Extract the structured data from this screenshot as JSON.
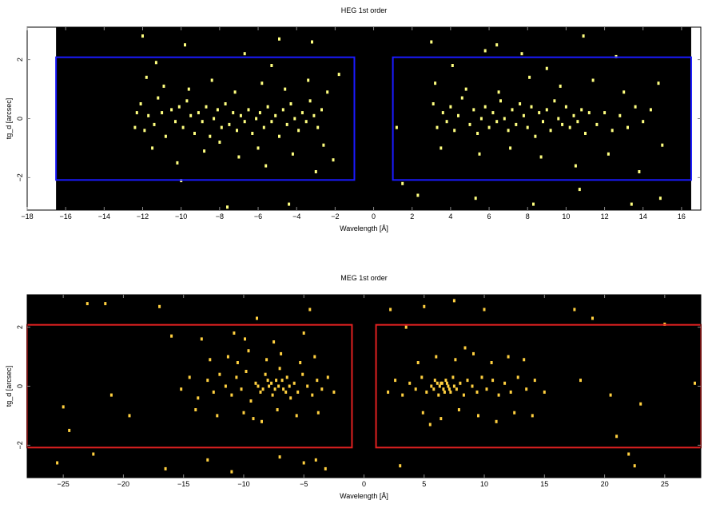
{
  "figure": {
    "background": "#ffffff",
    "plot_background": "#000000"
  },
  "chart_data": [
    {
      "type": "scatter",
      "title": "HEG 1st order",
      "xlabel": "Wavelength [Å]",
      "ylabel": "tg_d [arcsec]",
      "xlim": [
        -18,
        17
      ],
      "ylim": [
        -3.1,
        3.1
      ],
      "xticks": [
        -18,
        -16,
        -14,
        -12,
        -10,
        -8,
        -6,
        -4,
        -2,
        0,
        2,
        4,
        6,
        8,
        10,
        12,
        14,
        16
      ],
      "yticks": [
        -2,
        0,
        2
      ],
      "data_coverage_x": [
        -16.5,
        16.5
      ],
      "regions": [
        {
          "x": [
            -16.5,
            -1.0
          ],
          "y": [
            -2.08,
            2.08
          ],
          "color": "#1a1aff"
        },
        {
          "x": [
            1.0,
            16.5
          ],
          "y": [
            -2.08,
            2.08
          ],
          "color": "#1a1aff"
        }
      ],
      "point_color": "#ffff80",
      "points": [
        [
          -12.3,
          0.2
        ],
        [
          -12.1,
          0.5
        ],
        [
          -11.9,
          -0.4
        ],
        [
          -11.7,
          0.1
        ],
        [
          -11.4,
          -0.2
        ],
        [
          -11.2,
          0.7
        ],
        [
          -11.0,
          0.2
        ],
        [
          -10.8,
          -0.6
        ],
        [
          -10.5,
          0.3
        ],
        [
          -10.3,
          -0.1
        ],
        [
          -10.1,
          0.4
        ],
        [
          -9.9,
          -0.3
        ],
        [
          -9.7,
          0.6
        ],
        [
          -9.5,
          0.1
        ],
        [
          -9.3,
          -0.5
        ],
        [
          -9.1,
          0.2
        ],
        [
          -8.9,
          -0.1
        ],
        [
          -8.7,
          0.4
        ],
        [
          -8.5,
          -0.6
        ],
        [
          -8.3,
          0.0
        ],
        [
          -8.1,
          0.3
        ],
        [
          -7.9,
          -0.3
        ],
        [
          -7.7,
          0.5
        ],
        [
          -7.5,
          -0.2
        ],
        [
          -7.3,
          0.2
        ],
        [
          -7.1,
          -0.4
        ],
        [
          -6.9,
          0.1
        ],
        [
          -6.7,
          -0.1
        ],
        [
          -6.5,
          0.3
        ],
        [
          -6.3,
          -0.5
        ],
        [
          -6.1,
          0.0
        ],
        [
          -5.9,
          0.2
        ],
        [
          -5.7,
          -0.3
        ],
        [
          -5.5,
          0.4
        ],
        [
          -5.3,
          -0.1
        ],
        [
          -5.1,
          0.1
        ],
        [
          -4.9,
          -0.6
        ],
        [
          -4.7,
          0.3
        ],
        [
          -4.5,
          -0.2
        ],
        [
          -4.3,
          0.5
        ],
        [
          -4.1,
          0.0
        ],
        [
          -3.9,
          -0.4
        ],
        [
          -3.7,
          0.2
        ],
        [
          -3.5,
          -0.1
        ],
        [
          -3.3,
          0.6
        ],
        [
          -3.1,
          0.1
        ],
        [
          -2.9,
          -0.3
        ],
        [
          -2.7,
          0.3
        ],
        [
          -11.8,
          1.4
        ],
        [
          -10.9,
          1.1
        ],
        [
          -9.6,
          1.0
        ],
        [
          -8.4,
          1.3
        ],
        [
          -7.2,
          0.9
        ],
        [
          -5.8,
          1.2
        ],
        [
          -4.6,
          1.0
        ],
        [
          -3.4,
          1.3
        ],
        [
          -11.5,
          -1.0
        ],
        [
          -10.2,
          -1.5
        ],
        [
          -8.8,
          -1.1
        ],
        [
          -7.0,
          -1.3
        ],
        [
          -5.6,
          -1.6
        ],
        [
          -4.2,
          -1.2
        ],
        [
          -3.0,
          -1.8
        ],
        [
          -2.4,
          0.9
        ],
        [
          -12.0,
          2.8
        ],
        [
          -9.8,
          2.5
        ],
        [
          -6.7,
          2.2
        ],
        [
          -4.9,
          2.7
        ],
        [
          -3.2,
          2.6
        ],
        [
          -11.3,
          1.9
        ],
        [
          -5.3,
          1.8
        ],
        [
          -2.6,
          -0.9
        ],
        [
          -10.0,
          -2.1
        ],
        [
          -7.6,
          -3.0
        ],
        [
          -4.4,
          -2.9
        ],
        [
          -1.8,
          1.5
        ],
        [
          -2.1,
          -1.4
        ],
        [
          -6.0,
          -1.0
        ],
        [
          -8.0,
          -0.8
        ],
        [
          -12.4,
          -0.3
        ],
        [
          3.1,
          0.5
        ],
        [
          3.3,
          -0.3
        ],
        [
          3.6,
          0.2
        ],
        [
          3.8,
          -0.1
        ],
        [
          4.0,
          0.4
        ],
        [
          4.2,
          -0.4
        ],
        [
          4.4,
          0.1
        ],
        [
          4.6,
          0.7
        ],
        [
          5.0,
          -0.2
        ],
        [
          5.2,
          0.3
        ],
        [
          5.4,
          -0.5
        ],
        [
          5.6,
          0.0
        ],
        [
          5.8,
          0.4
        ],
        [
          6.0,
          -0.3
        ],
        [
          6.2,
          0.2
        ],
        [
          6.4,
          -0.1
        ],
        [
          6.6,
          0.6
        ],
        [
          6.8,
          0.0
        ],
        [
          7.0,
          -0.4
        ],
        [
          7.2,
          0.3
        ],
        [
          7.4,
          -0.2
        ],
        [
          7.6,
          0.5
        ],
        [
          7.8,
          0.1
        ],
        [
          8.0,
          -0.3
        ],
        [
          8.2,
          0.4
        ],
        [
          8.4,
          -0.6
        ],
        [
          8.6,
          0.2
        ],
        [
          8.8,
          -0.1
        ],
        [
          9.0,
          0.3
        ],
        [
          9.2,
          -0.4
        ],
        [
          9.4,
          0.6
        ],
        [
          9.6,
          0.0
        ],
        [
          9.8,
          -0.2
        ],
        [
          10.0,
          0.4
        ],
        [
          10.2,
          -0.3
        ],
        [
          10.4,
          0.1
        ],
        [
          10.6,
          -0.1
        ],
        [
          10.8,
          0.3
        ],
        [
          11.0,
          -0.5
        ],
        [
          11.2,
          0.2
        ],
        [
          11.6,
          -0.2
        ],
        [
          12.0,
          0.2
        ],
        [
          12.4,
          -0.4
        ],
        [
          12.8,
          0.1
        ],
        [
          13.2,
          -0.3
        ],
        [
          13.6,
          0.4
        ],
        [
          14.0,
          -0.1
        ],
        [
          14.4,
          0.3
        ],
        [
          3.2,
          1.2
        ],
        [
          4.8,
          1.0
        ],
        [
          6.5,
          0.9
        ],
        [
          8.1,
          1.4
        ],
        [
          9.7,
          1.1
        ],
        [
          11.4,
          1.3
        ],
        [
          13.0,
          0.9
        ],
        [
          14.8,
          1.2
        ],
        [
          3.5,
          -1.0
        ],
        [
          5.5,
          -1.2
        ],
        [
          7.1,
          -1.0
        ],
        [
          8.7,
          -1.3
        ],
        [
          10.5,
          -1.6
        ],
        [
          12.2,
          -1.2
        ],
        [
          13.8,
          -1.8
        ],
        [
          15.0,
          -0.9
        ],
        [
          3.0,
          2.6
        ],
        [
          5.8,
          2.3
        ],
        [
          6.4,
          2.5
        ],
        [
          7.7,
          2.2
        ],
        [
          10.9,
          2.8
        ],
        [
          12.6,
          2.1
        ],
        [
          4.1,
          1.8
        ],
        [
          9.0,
          1.7
        ],
        [
          1.5,
          -2.2
        ],
        [
          2.3,
          -2.6
        ],
        [
          5.3,
          -2.7
        ],
        [
          8.3,
          -2.9
        ],
        [
          10.7,
          -2.4
        ],
        [
          13.4,
          -2.9
        ],
        [
          14.9,
          -2.7
        ],
        [
          1.2,
          -0.3
        ]
      ]
    },
    {
      "type": "scatter",
      "title": "MEG 1st order",
      "xlabel": "Wavelength [Å]",
      "ylabel": "tg_d [arcsec]",
      "xlim": [
        -28,
        28
      ],
      "ylim": [
        -3.1,
        3.1
      ],
      "xticks": [
        -25,
        -20,
        -15,
        -10,
        -5,
        0,
        5,
        10,
        15,
        20,
        25
      ],
      "yticks": [
        -2,
        0,
        2
      ],
      "regions": [
        {
          "x": [
            -28,
            -1.0
          ],
          "y": [
            -2.08,
            2.08
          ],
          "color": "#e02020"
        },
        {
          "x": [
            1.0,
            28
          ],
          "y": [
            -2.08,
            2.08
          ],
          "color": "#e02020"
        }
      ],
      "point_color": "#ffd040",
      "points": [
        [
          -15.2,
          -0.1
        ],
        [
          -14.5,
          0.3
        ],
        [
          -13.8,
          -0.4
        ],
        [
          -13.0,
          0.2
        ],
        [
          -12.5,
          -0.2
        ],
        [
          -12.0,
          0.4
        ],
        [
          -11.5,
          0.0
        ],
        [
          -11.0,
          -0.3
        ],
        [
          -10.6,
          0.3
        ],
        [
          -10.2,
          -0.1
        ],
        [
          -9.8,
          0.5
        ],
        [
          -9.4,
          -0.5
        ],
        [
          -9.0,
          0.1
        ],
        [
          -8.6,
          -0.2
        ],
        [
          -8.2,
          0.4
        ],
        [
          -7.9,
          0.0
        ],
        [
          -7.6,
          -0.3
        ],
        [
          -7.3,
          0.2
        ],
        [
          -7.0,
          0.6
        ],
        [
          -6.7,
          -0.1
        ],
        [
          -6.4,
          0.3
        ],
        [
          -6.1,
          -0.4
        ],
        [
          -5.8,
          0.1
        ],
        [
          -5.5,
          -0.2
        ],
        [
          -5.1,
          0.4
        ],
        [
          -4.7,
          0.0
        ],
        [
          -4.3,
          -0.3
        ],
        [
          -3.9,
          0.2
        ],
        [
          -3.5,
          -0.1
        ],
        [
          -3.0,
          0.3
        ],
        [
          -2.5,
          -0.2
        ],
        [
          -8.8,
          0.0
        ],
        [
          -8.4,
          -0.1
        ],
        [
          -8.0,
          0.2
        ],
        [
          -7.7,
          0.1
        ],
        [
          -7.4,
          -0.1
        ],
        [
          -7.1,
          0.0
        ],
        [
          -6.8,
          0.2
        ],
        [
          -6.5,
          -0.2
        ],
        [
          -6.2,
          0.0
        ],
        [
          -12.8,
          0.9
        ],
        [
          -11.3,
          1.0
        ],
        [
          -9.6,
          1.2
        ],
        [
          -8.1,
          0.9
        ],
        [
          -6.9,
          1.1
        ],
        [
          -5.3,
          0.8
        ],
        [
          -4.1,
          1.0
        ],
        [
          -10.5,
          0.8
        ],
        [
          -14.0,
          -0.8
        ],
        [
          -12.2,
          -1.0
        ],
        [
          -10.0,
          -0.9
        ],
        [
          -8.5,
          -1.2
        ],
        [
          -7.2,
          -0.8
        ],
        [
          -5.6,
          -1.0
        ],
        [
          -3.8,
          -0.9
        ],
        [
          -9.2,
          -1.1
        ],
        [
          -13.5,
          1.6
        ],
        [
          -10.8,
          1.8
        ],
        [
          -8.9,
          2.3
        ],
        [
          -7.5,
          1.5
        ],
        [
          -5.0,
          1.8
        ],
        [
          -16.0,
          1.7
        ],
        [
          -4.5,
          2.6
        ],
        [
          -9.9,
          1.6
        ],
        [
          -23.0,
          2.8
        ],
        [
          -21.5,
          2.8
        ],
        [
          -17.0,
          2.7
        ],
        [
          -25.0,
          -0.7
        ],
        [
          -24.5,
          -1.5
        ],
        [
          -19.5,
          -1.0
        ],
        [
          -21.0,
          -0.3
        ],
        [
          -22.5,
          -2.3
        ],
        [
          -25.5,
          -2.6
        ],
        [
          -16.5,
          -2.8
        ],
        [
          -13.0,
          -2.5
        ],
        [
          -11.0,
          -2.9
        ],
        [
          -7.0,
          -2.4
        ],
        [
          -5.0,
          -2.6
        ],
        [
          -4.0,
          -2.5
        ],
        [
          -3.2,
          -2.8
        ],
        [
          2.0,
          -0.2
        ],
        [
          2.6,
          0.2
        ],
        [
          3.2,
          -0.3
        ],
        [
          3.8,
          0.1
        ],
        [
          4.3,
          -0.1
        ],
        [
          4.8,
          0.3
        ],
        [
          5.2,
          -0.2
        ],
        [
          5.6,
          0.0
        ],
        [
          5.9,
          0.2
        ],
        [
          6.2,
          -0.3
        ],
        [
          6.4,
          0.1
        ],
        [
          6.6,
          -0.1
        ],
        [
          6.8,
          0.2
        ],
        [
          7.0,
          0.0
        ],
        [
          7.2,
          -0.2
        ],
        [
          7.4,
          0.3
        ],
        [
          7.7,
          -0.1
        ],
        [
          8.0,
          0.1
        ],
        [
          8.3,
          -0.3
        ],
        [
          8.6,
          0.2
        ],
        [
          9.0,
          0.0
        ],
        [
          9.4,
          -0.2
        ],
        [
          9.8,
          0.3
        ],
        [
          10.2,
          -0.1
        ],
        [
          10.7,
          0.2
        ],
        [
          11.2,
          -0.3
        ],
        [
          11.7,
          0.1
        ],
        [
          12.2,
          -0.2
        ],
        [
          12.8,
          0.3
        ],
        [
          13.5,
          -0.1
        ],
        [
          14.2,
          0.2
        ],
        [
          15.0,
          -0.2
        ],
        [
          6.3,
          0.0
        ],
        [
          6.5,
          0.1
        ],
        [
          6.7,
          -0.2
        ],
        [
          6.9,
          0.1
        ],
        [
          7.1,
          -0.1
        ],
        [
          5.8,
          -0.1
        ],
        [
          7.5,
          0.0
        ],
        [
          6.1,
          0.1
        ],
        [
          4.5,
          0.8
        ],
        [
          6.0,
          1.0
        ],
        [
          7.6,
          0.9
        ],
        [
          9.1,
          1.1
        ],
        [
          10.6,
          0.8
        ],
        [
          12.0,
          1.0
        ],
        [
          13.3,
          0.9
        ],
        [
          8.4,
          1.3
        ],
        [
          4.9,
          -0.9
        ],
        [
          6.4,
          -1.1
        ],
        [
          7.9,
          -0.8
        ],
        [
          9.5,
          -1.0
        ],
        [
          11.0,
          -1.2
        ],
        [
          12.5,
          -0.9
        ],
        [
          14.0,
          -1.0
        ],
        [
          5.5,
          -1.3
        ],
        [
          2.2,
          2.6
        ],
        [
          5.0,
          2.7
        ],
        [
          7.5,
          2.9
        ],
        [
          10.0,
          2.6
        ],
        [
          17.5,
          2.6
        ],
        [
          19.0,
          2.3
        ],
        [
          25.0,
          2.1
        ],
        [
          3.5,
          2.0
        ],
        [
          18.0,
          0.2
        ],
        [
          20.5,
          -0.3
        ],
        [
          23.0,
          -0.6
        ],
        [
          27.5,
          0.1
        ],
        [
          21.0,
          -1.7
        ],
        [
          22.0,
          -2.3
        ],
        [
          22.5,
          -2.7
        ],
        [
          3.0,
          -2.7
        ]
      ]
    }
  ]
}
